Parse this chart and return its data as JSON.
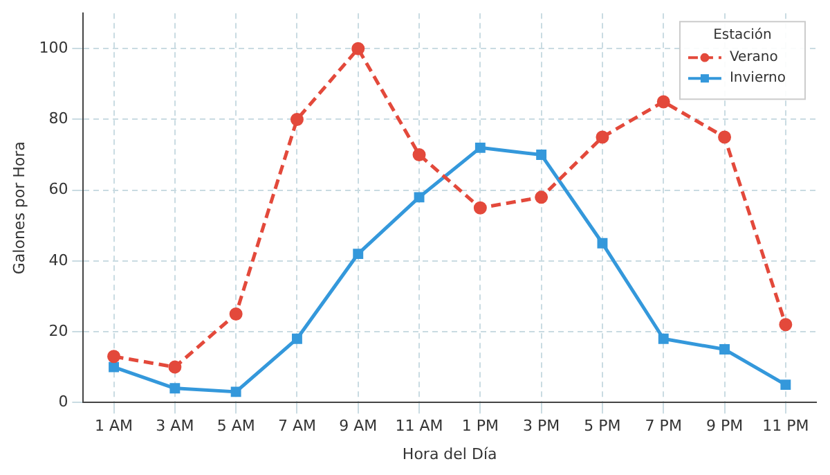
{
  "chart_data": {
    "type": "line",
    "xlabel": "Hora del Día",
    "ylabel": "Galones por Hora",
    "legend_title": "Estación",
    "categories": [
      "1 AM",
      "3 AM",
      "5 AM",
      "7 AM",
      "9 AM",
      "11 AM",
      "1 PM",
      "3 PM",
      "5 PM",
      "7 PM",
      "9 PM",
      "11 PM"
    ],
    "series": [
      {
        "name": "Verano",
        "color": "#e3493b",
        "marker": "circle",
        "line_style": "dashed",
        "values": [
          13,
          10,
          25,
          80,
          100,
          70,
          55,
          58,
          75,
          85,
          75,
          22
        ]
      },
      {
        "name": "Invierno",
        "color": "#3498db",
        "marker": "square",
        "line_style": "solid",
        "values": [
          10,
          4,
          3,
          18,
          42,
          58,
          72,
          70,
          45,
          18,
          15,
          5
        ]
      }
    ],
    "ylim": [
      0,
      110
    ],
    "yticks": [
      0,
      20,
      40,
      60,
      80,
      100
    ],
    "grid": true,
    "legend": "top right"
  }
}
